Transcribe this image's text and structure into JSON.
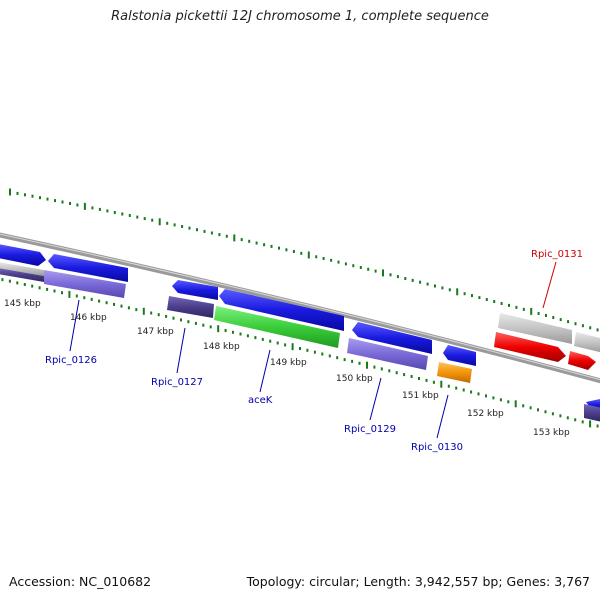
{
  "title": "Ralstonia pickettii 12J chromosome 1, complete sequence",
  "accession": "Accession: NC_010682",
  "topology": "Topology: circular; Length: 3,942,557 bp; Genes: 3,767",
  "colors": {
    "backbone": "#8a8a8a",
    "tick": "#1a7a1a",
    "cds_blue": "#1a1ae0",
    "cds_purple": "#7a6ad8",
    "cds_dark_purple": "#4a3e8a",
    "cds_green": "#3acd3a",
    "cds_orange": "#f4950a",
    "cds_red": "#ee0000",
    "cds_gray": "#bdbdbd",
    "label_blue": "#0000aa",
    "label_red": "#cc0000"
  },
  "scale_labels": [
    "145 kbp",
    "146 kbp",
    "147 kbp",
    "148 kbp",
    "149 kbp",
    "150 kbp",
    "151 kbp",
    "152 kbp",
    "153 kbp"
  ],
  "gene_labels": [
    {
      "text": "Rpic_0126",
      "color": "label_blue"
    },
    {
      "text": "Rpic_0127",
      "color": "label_blue"
    },
    {
      "text": "aceK",
      "color": "label_blue"
    },
    {
      "text": "Rpic_0129",
      "color": "label_blue"
    },
    {
      "text": "Rpic_0130",
      "color": "label_blue"
    },
    {
      "text": "Rpic_0131",
      "color": "label_red"
    }
  ]
}
